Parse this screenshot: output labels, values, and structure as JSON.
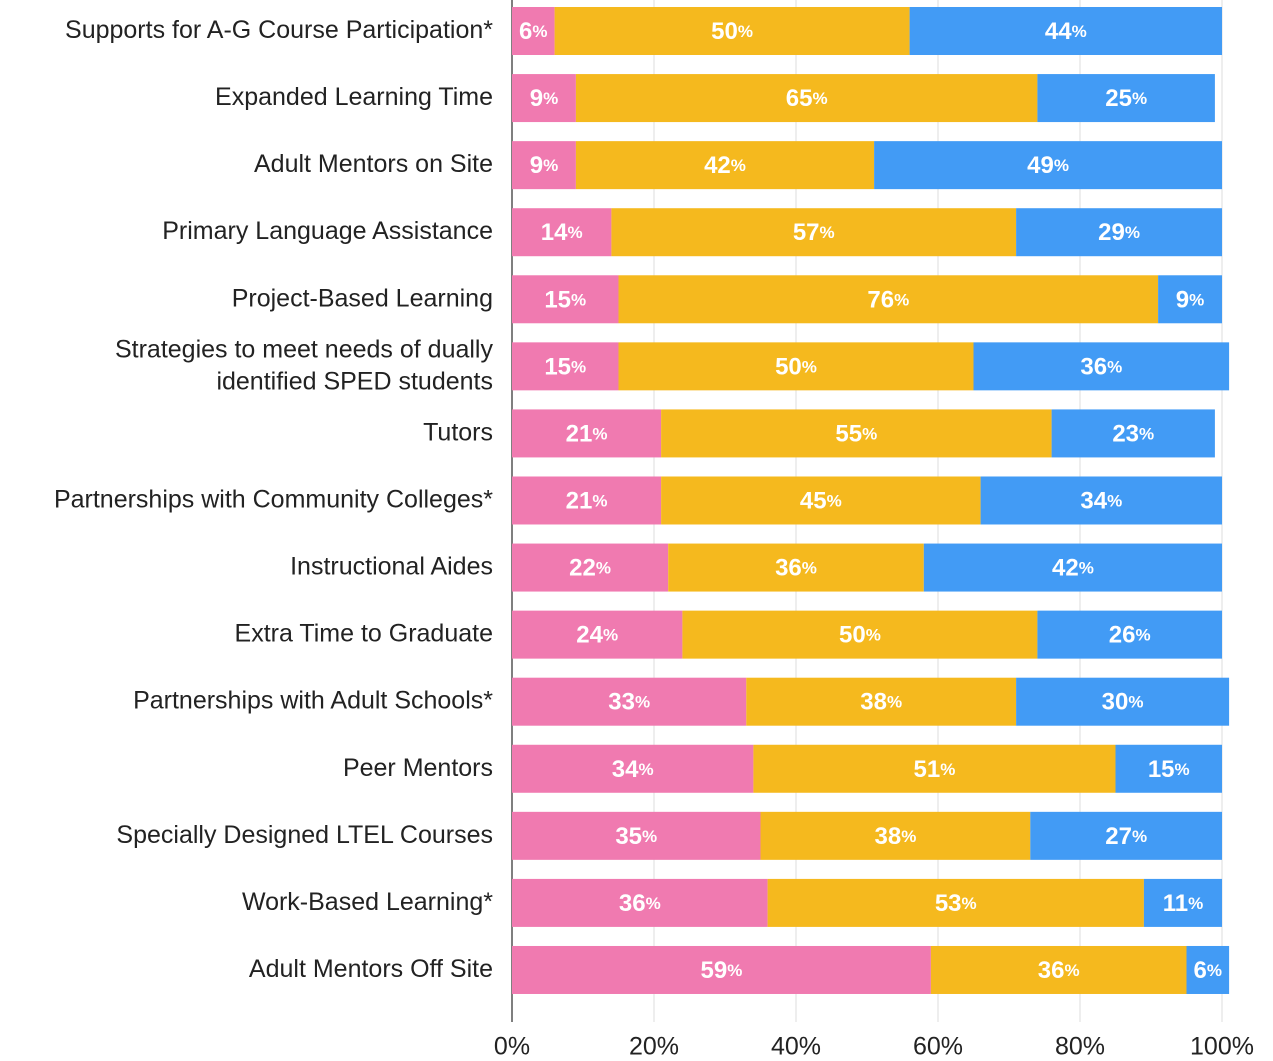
{
  "chart_data": {
    "type": "stacked-barh",
    "categories": [
      "Supports for A-G Course Participation*",
      "Expanded Learning Time",
      "Adult Mentors on Site",
      "Primary Language Assistance",
      "Project-Based Learning",
      "Strategies to meet needs of dually\nidentified SPED students",
      "Tutors",
      "Partnerships with Community Colleges*",
      "Instructional Aides",
      "Extra Time to Graduate",
      "Partnerships with Adult Schools*",
      "Peer Mentors",
      "Specially Designed LTEL Courses",
      "Work-Based Learning*",
      "Adult Mentors Off Site"
    ],
    "series": [
      {
        "color": "#f07ab0",
        "values": [
          6,
          9,
          9,
          14,
          15,
          15,
          21,
          21,
          22,
          24,
          33,
          34,
          35,
          36,
          59
        ],
        "value_labels": [
          "6%",
          "9%",
          "9%",
          "14%",
          "15%",
          "15%",
          "21%",
          "21%",
          "22%",
          "24%",
          "33%",
          "34%",
          "35%",
          "36%",
          "59%"
        ]
      },
      {
        "color": "#f5b91e",
        "values": [
          50,
          65,
          42,
          57,
          76,
          50,
          55,
          45,
          36,
          50,
          38,
          51,
          38,
          53,
          36
        ],
        "value_labels": [
          "50%",
          "65%",
          "42%",
          "57%",
          "76%",
          "50%",
          "55%",
          "45%",
          "36%",
          "50%",
          "38%",
          "51%",
          "38%",
          "53%",
          "36%"
        ]
      },
      {
        "color": "#429bf5",
        "values": [
          44,
          25,
          49,
          29,
          9,
          36,
          23,
          34,
          42,
          26,
          30,
          15,
          27,
          11,
          6
        ],
        "value_labels": [
          "44%",
          "25%",
          "49%",
          "29%",
          "9%",
          "36%",
          "23%",
          "34%",
          "42%",
          "26%",
          "30%",
          "15%",
          "27%",
          "11%",
          "6%"
        ]
      }
    ],
    "xlim": [
      0,
      100
    ],
    "xticks": [
      {
        "value": 0,
        "label": "0%"
      },
      {
        "value": 20,
        "label": "20%"
      },
      {
        "value": 40,
        "label": "40%"
      },
      {
        "value": 60,
        "label": "60%"
      },
      {
        "value": 80,
        "label": "80%"
      },
      {
        "value": 100,
        "label": "100%"
      }
    ],
    "grid": true
  }
}
